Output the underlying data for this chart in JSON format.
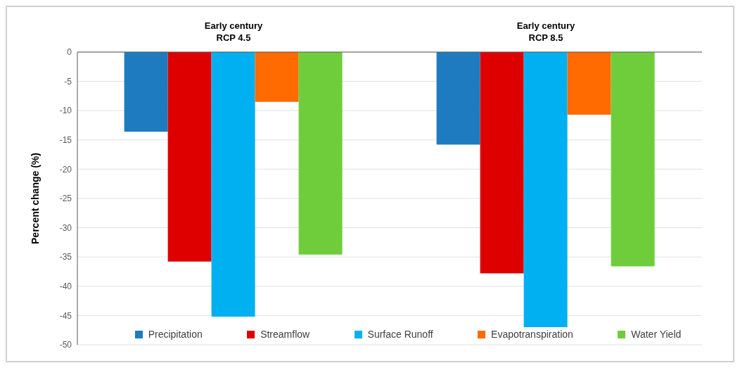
{
  "chart_data": {
    "type": "bar",
    "ylabel": "Percent change (%)",
    "categories": [
      "Early century\nRCP 4.5",
      "Early century\nRCP 8.5"
    ],
    "series": [
      {
        "name": "Precipitation",
        "color": "#1f7bbf",
        "values": [
          -13.6,
          -15.8
        ]
      },
      {
        "name": "Streamflow",
        "color": "#de0000",
        "values": [
          -35.8,
          -37.8
        ]
      },
      {
        "name": "Surface Runoff",
        "color": "#00b0f0",
        "values": [
          -45.2,
          -47.0
        ]
      },
      {
        "name": "Evapotranspiration",
        "color": "#ff6b00",
        "values": [
          -8.5,
          -10.7
        ]
      },
      {
        "name": "Water Yield",
        "color": "#6fcd3c",
        "values": [
          -34.6,
          -36.6
        ]
      }
    ],
    "ylim": [
      -50,
      0
    ],
    "yticks": [
      0,
      -5,
      -10,
      -15,
      -20,
      -25,
      -30,
      -35,
      -40,
      -45,
      -50
    ],
    "grid": "y",
    "legend": "bottom"
  }
}
